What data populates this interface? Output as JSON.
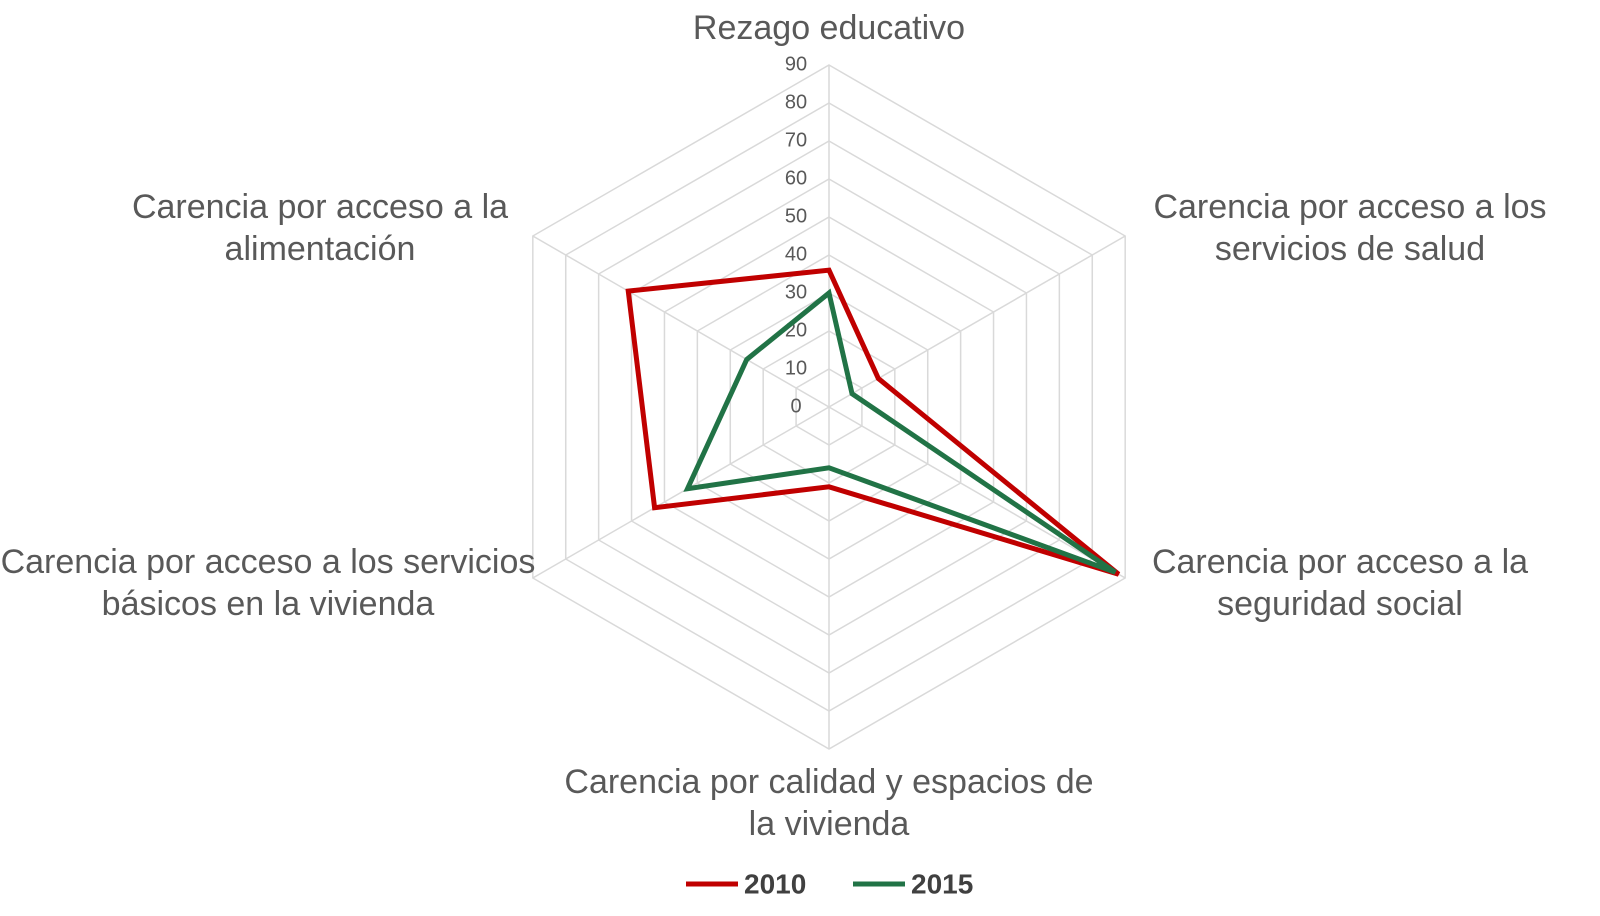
{
  "chart_data": {
    "type": "radar",
    "categories": [
      "Rezago educativo",
      "Carencia por acceso a los servicios de salud",
      "Carencia por acceso a la seguridad social",
      "Carencia por calidad y espacios de la vivienda",
      "Carencia por acceso a los servicios básicos en la vivienda",
      "Carencia por acceso a la alimentación"
    ],
    "series": [
      {
        "name": "2010",
        "color": "#c00000",
        "values": [
          36,
          15,
          88,
          21,
          53,
          61
        ]
      },
      {
        "name": "2015",
        "color": "#217346",
        "values": [
          30,
          7,
          87,
          16,
          43,
          25
        ]
      }
    ],
    "ylim": [
      0,
      90
    ],
    "yticks": [
      0,
      10,
      20,
      30,
      40,
      50,
      60,
      70,
      80,
      90
    ],
    "grid": true,
    "legend": "bottom"
  }
}
